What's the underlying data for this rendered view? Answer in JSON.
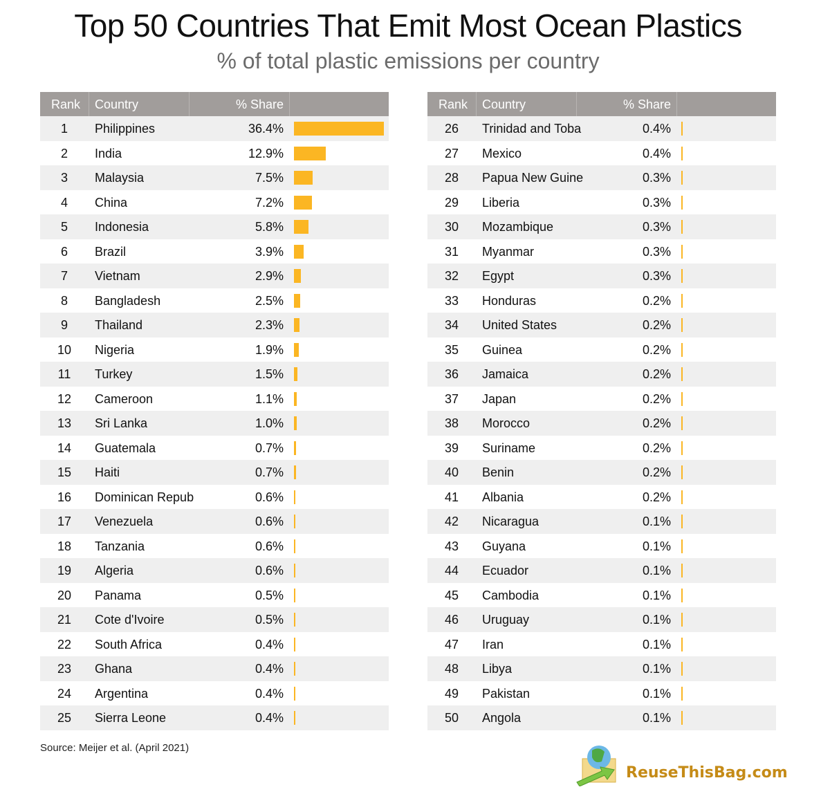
{
  "chart_data": {
    "type": "table",
    "title": "Top 50 Countries That Emit Most Ocean Plastics",
    "subtitle": "% of total plastic emissions per country",
    "columns": [
      "Rank",
      "Country",
      "% Share"
    ],
    "bar_color": "#fbb623",
    "header_color": "#a19d9b",
    "rows": [
      [
        1,
        "Philippines",
        36.4
      ],
      [
        2,
        "India",
        12.9
      ],
      [
        3,
        "Malaysia",
        7.5
      ],
      [
        4,
        "China",
        7.2
      ],
      [
        5,
        "Indonesia",
        5.8
      ],
      [
        6,
        "Brazil",
        3.9
      ],
      [
        7,
        "Vietnam",
        2.9
      ],
      [
        8,
        "Bangladesh",
        2.5
      ],
      [
        9,
        "Thailand",
        2.3
      ],
      [
        10,
        "Nigeria",
        1.9
      ],
      [
        11,
        "Turkey",
        1.5
      ],
      [
        12,
        "Cameroon",
        1.1
      ],
      [
        13,
        "Sri Lanka",
        1.0
      ],
      [
        14,
        "Guatemala",
        0.7
      ],
      [
        15,
        "Haiti",
        0.7
      ],
      [
        16,
        "Dominican Repub",
        0.6
      ],
      [
        17,
        "Venezuela",
        0.6
      ],
      [
        18,
        "Tanzania",
        0.6
      ],
      [
        19,
        "Algeria",
        0.6
      ],
      [
        20,
        "Panama",
        0.5
      ],
      [
        21,
        "Cote d'Ivoire",
        0.5
      ],
      [
        22,
        "South Africa",
        0.4
      ],
      [
        23,
        "Ghana",
        0.4
      ],
      [
        24,
        "Argentina",
        0.4
      ],
      [
        25,
        "Sierra Leone",
        0.4
      ],
      [
        26,
        "Trinidad and Toba",
        0.4
      ],
      [
        27,
        "Mexico",
        0.4
      ],
      [
        28,
        "Papua New Guine",
        0.3
      ],
      [
        29,
        "Liberia",
        0.3
      ],
      [
        30,
        "Mozambique",
        0.3
      ],
      [
        31,
        "Myanmar",
        0.3
      ],
      [
        32,
        "Egypt",
        0.3
      ],
      [
        33,
        "Honduras",
        0.2
      ],
      [
        34,
        "United States",
        0.2
      ],
      [
        35,
        "Guinea",
        0.2
      ],
      [
        36,
        "Jamaica",
        0.2
      ],
      [
        37,
        "Japan",
        0.2
      ],
      [
        38,
        "Morocco",
        0.2
      ],
      [
        39,
        "Suriname",
        0.2
      ],
      [
        40,
        "Benin",
        0.2
      ],
      [
        41,
        "Albania",
        0.2
      ],
      [
        42,
        "Nicaragua",
        0.1
      ],
      [
        43,
        "Guyana",
        0.1
      ],
      [
        44,
        "Ecuador",
        0.1
      ],
      [
        45,
        "Cambodia",
        0.1
      ],
      [
        46,
        "Uruguay",
        0.1
      ],
      [
        47,
        "Iran",
        0.1
      ],
      [
        48,
        "Libya",
        0.1
      ],
      [
        49,
        "Pakistan",
        0.1
      ],
      [
        50,
        "Angola",
        0.1
      ]
    ]
  },
  "source": "Source: Meijer et al. (April 2021)",
  "logo": {
    "text": "ReuseThisBag.com"
  }
}
